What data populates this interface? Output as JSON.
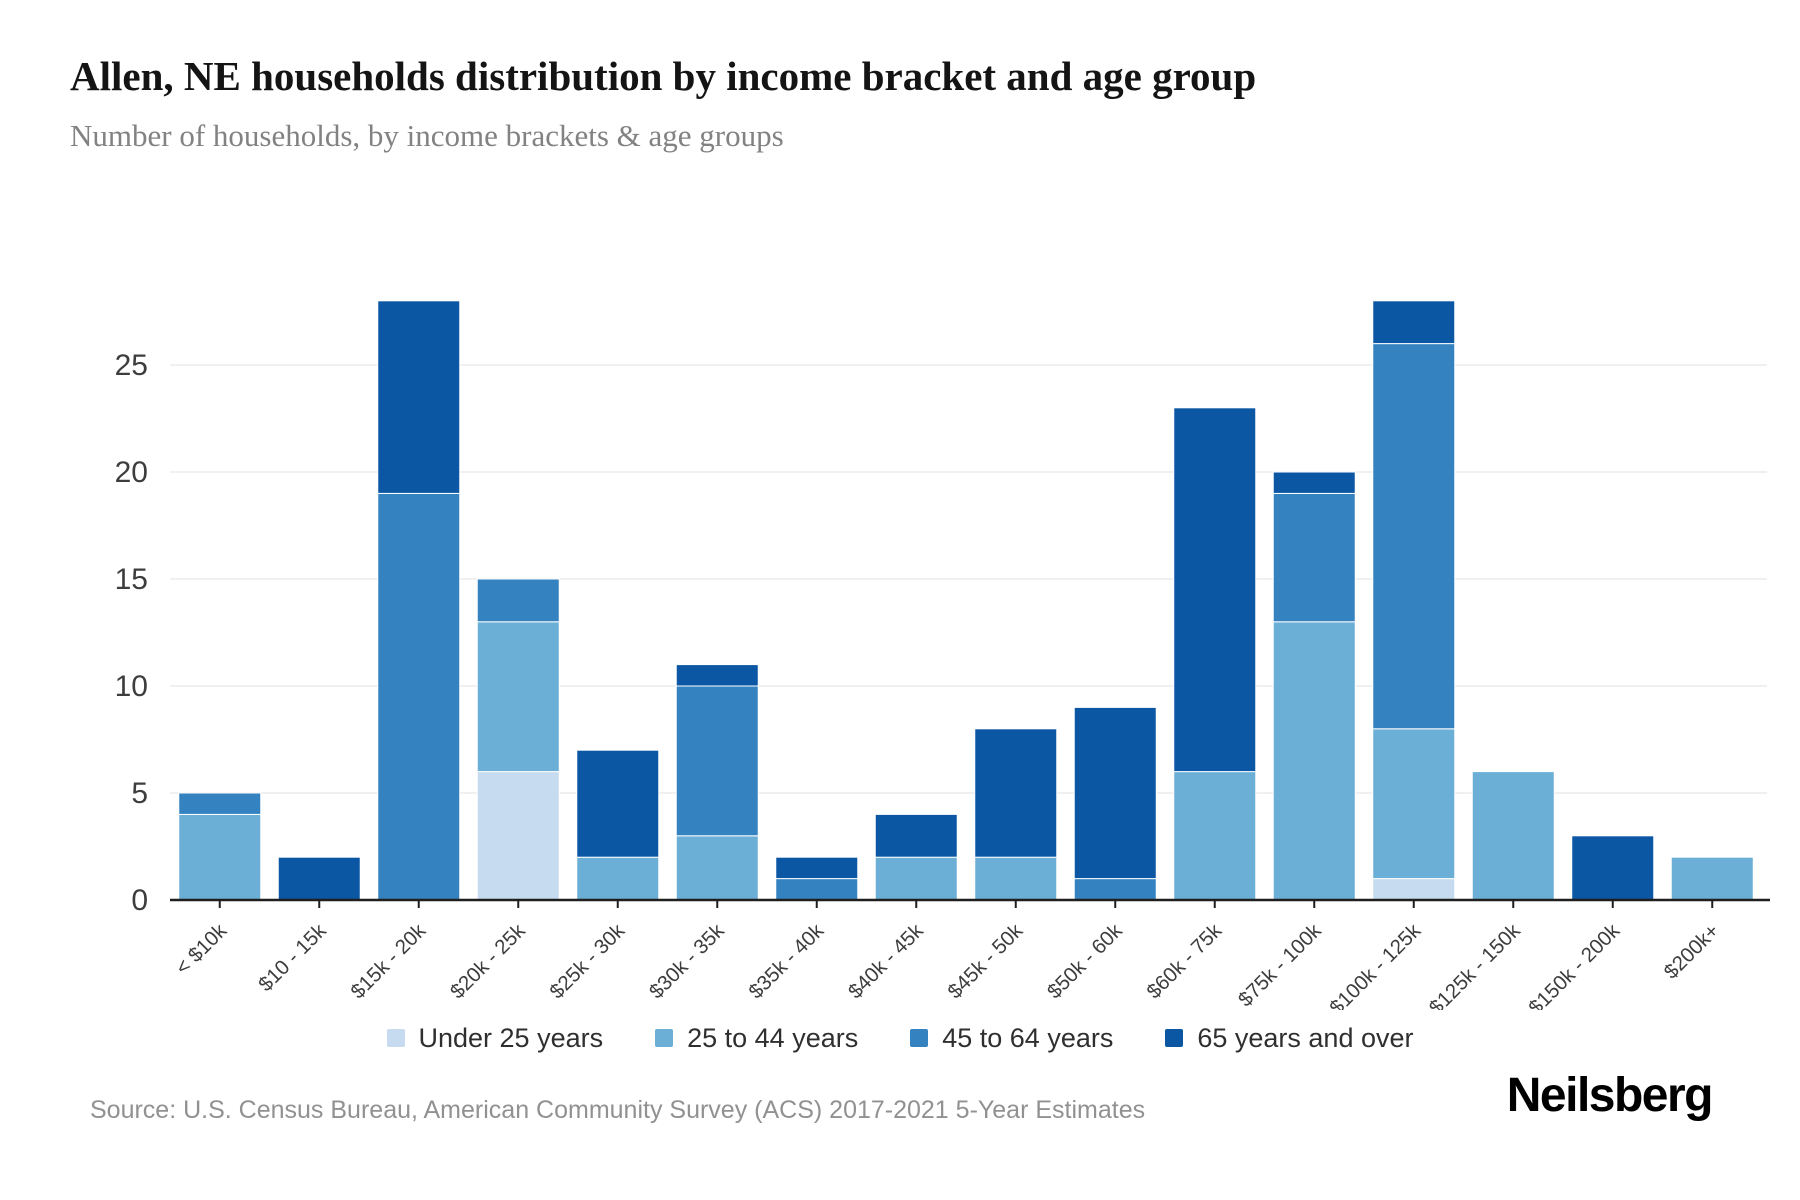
{
  "header": {
    "title": "Allen, NE households distribution by income bracket and age group",
    "subtitle": "Number of households, by income brackets & age groups"
  },
  "footer": {
    "source": "Source: U.S. Census Bureau, American Community Survey (ACS) 2017-2021 5-Year Estimates",
    "brand": "Neilsberg"
  },
  "chart_data": {
    "type": "bar",
    "stacked": true,
    "title": "Allen, NE households distribution by income bracket and age group",
    "subtitle": "Number of households, by income brackets & age groups",
    "xlabel": "",
    "ylabel": "",
    "categories": [
      "< $10k",
      "$10 - 15k",
      "$15k - 20k",
      "$20k - 25k",
      "$25k - 30k",
      "$30k - 35k",
      "$35k - 40k",
      "$40k - 45k",
      "$45k - 50k",
      "$50k - 60k",
      "$60k - 75k",
      "$75k - 100k",
      "$100k - 125k",
      "$125k - 150k",
      "$150k - 200k",
      "$200k+"
    ],
    "series": [
      {
        "name": "Under 25 years",
        "color": "#c6dbef",
        "values": [
          0,
          0,
          0,
          6,
          0,
          0,
          0,
          0,
          0,
          0,
          0,
          0,
          1,
          0,
          0,
          0
        ]
      },
      {
        "name": "25 to 44 years",
        "color": "#6baed6",
        "values": [
          4,
          0,
          0,
          7,
          2,
          3,
          0,
          2,
          2,
          0,
          6,
          13,
          7,
          6,
          0,
          2
        ]
      },
      {
        "name": "45 to 64 years",
        "color": "#3482c0",
        "values": [
          1,
          0,
          19,
          2,
          0,
          7,
          1,
          0,
          0,
          1,
          0,
          6,
          18,
          0,
          0,
          0
        ]
      },
      {
        "name": "65 years and over",
        "color": "#0b57a4",
        "values": [
          0,
          2,
          9,
          0,
          5,
          1,
          1,
          2,
          6,
          8,
          17,
          1,
          2,
          0,
          3,
          0
        ]
      }
    ],
    "totals": [
      5,
      2,
      28,
      15,
      7,
      11,
      2,
      4,
      8,
      9,
      23,
      20,
      28,
      6,
      3,
      2
    ],
    "yticks": [
      0,
      5,
      10,
      15,
      20,
      25
    ],
    "ylim": [
      0,
      28.5
    ],
    "grid": true,
    "legend_position": "bottom",
    "colors": {
      "grid": "#ececec",
      "axis": "#1f1f1f",
      "tick_label": "#3d3d3d",
      "segment_border": "#ffffff"
    }
  }
}
